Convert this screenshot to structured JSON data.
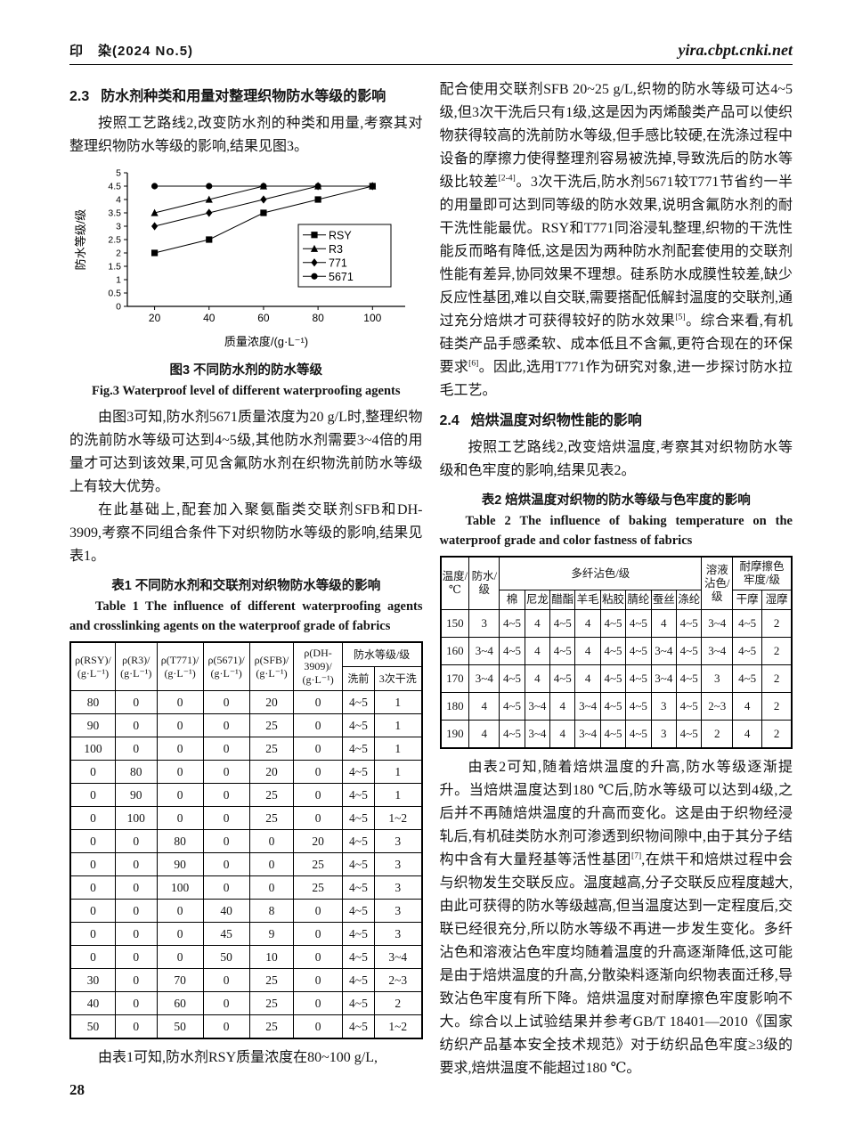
{
  "page": {
    "journal": "印　染(2024 No.5)",
    "site": "yira.cbpt.cnki.net",
    "page_number": "28"
  },
  "left": {
    "sec23": {
      "num": "2.3",
      "title": "防水剂种类和用量对整理织物防水等级的影响",
      "para": "按照工艺路线2,改变防水剂的种类和用量,考察其对整理织物防水等级的影响,结果见图3。"
    },
    "fig3": {
      "caption_zh": "图3  不同防水剂的防水等级",
      "caption_en": "Fig.3  Waterproof level of different waterproofing agents"
    },
    "para2": "由图3可知,防水剂5671质量浓度为20 g/L时,整理织物的洗前防水等级可达到4~5级,其他防水剂需要3~4倍的用量才可达到该效果,可见含氟防水剂在织物洗前防水等级上有较大优势。",
    "para3": "在此基础上,配套加入聚氨酯类交联剂SFB和DH-3909,考察不同组合条件下对织物防水等级的影响,结果见表1。",
    "table1": {
      "caption_zh": "表1  不同防水剂和交联剂对织物防水等级的影响",
      "caption_en": "Table 1  The influence of different waterproofing agents and crosslinking agents on the waterproof grade of fabrics",
      "headers": [
        "ρ(RSY)/\n(g·L⁻¹)",
        "ρ(R3)/\n(g·L⁻¹)",
        "ρ(T771)/\n(g·L⁻¹)",
        "ρ(5671)/\n(g·L⁻¹)",
        "ρ(SFB)/\n(g·L⁻¹)",
        "ρ(DH-\n3909)/\n(g·L⁻¹)"
      ],
      "group_header": "防水等级/级",
      "sub_headers": [
        "洗前",
        "3次干洗"
      ],
      "rows": [
        [
          "80",
          "0",
          "0",
          "0",
          "20",
          "0",
          "4~5",
          "1"
        ],
        [
          "90",
          "0",
          "0",
          "0",
          "25",
          "0",
          "4~5",
          "1"
        ],
        [
          "100",
          "0",
          "0",
          "0",
          "25",
          "0",
          "4~5",
          "1"
        ],
        [
          "0",
          "80",
          "0",
          "0",
          "20",
          "0",
          "4~5",
          "1"
        ],
        [
          "0",
          "90",
          "0",
          "0",
          "25",
          "0",
          "4~5",
          "1"
        ],
        [
          "0",
          "100",
          "0",
          "0",
          "25",
          "0",
          "4~5",
          "1~2"
        ],
        [
          "0",
          "0",
          "80",
          "0",
          "0",
          "20",
          "4~5",
          "3"
        ],
        [
          "0",
          "0",
          "90",
          "0",
          "0",
          "25",
          "4~5",
          "3"
        ],
        [
          "0",
          "0",
          "100",
          "0",
          "0",
          "25",
          "4~5",
          "3"
        ],
        [
          "0",
          "0",
          "0",
          "40",
          "8",
          "0",
          "4~5",
          "3"
        ],
        [
          "0",
          "0",
          "0",
          "45",
          "9",
          "0",
          "4~5",
          "3"
        ],
        [
          "0",
          "0",
          "0",
          "50",
          "10",
          "0",
          "4~5",
          "3~4"
        ],
        [
          "30",
          "0",
          "70",
          "0",
          "25",
          "0",
          "4~5",
          "2~3"
        ],
        [
          "40",
          "0",
          "60",
          "0",
          "25",
          "0",
          "4~5",
          "2"
        ],
        [
          "50",
          "0",
          "50",
          "0",
          "25",
          "0",
          "4~5",
          "1~2"
        ]
      ]
    },
    "para4": "由表1可知,防水剂RSY质量浓度在80~100 g/L,"
  },
  "right": {
    "para1": [
      {
        "t": "配合使用交联剂SFB 20~25 g/L,织物的防水等级可达4~5级,但3次干洗后只有1级,这是因为丙烯酸类产品可以使织物获得较高的洗前防水等级,但手感比较硬,在洗涤过程中设备的摩擦力使得整理剂容易被洗掉,导致洗后的防水等级比较差",
        "sup": false
      },
      {
        "t": "[2-4]",
        "sup": true
      },
      {
        "t": "。3次干洗后,防水剂5671较T771节省约一半的用量即可达到同等级的防水效果,说明含氟防水剂的耐干洗性能最优。RSY和T771同浴浸轧整理,织物的干洗性能反而略有降低,这是因为两种防水剂配套使用的交联剂性能有差异,协同效果不理想。硅系防水成膜性较差,缺少反应性基团,难以自交联,需要搭配低解封温度的交联剂,通过充分焙烘才可获得较好的防水效果",
        "sup": false
      },
      {
        "t": "[5]",
        "sup": true
      },
      {
        "t": "。综合来看,有机硅类产品手感柔软、成本低且不含氟,更符合现在的环保要求",
        "sup": false
      },
      {
        "t": "[6]",
        "sup": true
      },
      {
        "t": "。因此,选用T771作为研究对象,进一步探讨防水拉毛工艺。",
        "sup": false
      }
    ],
    "sec24": {
      "num": "2.4",
      "title": "焙烘温度对织物性能的影响",
      "para": "按照工艺路线2,改变焙烘温度,考察其对织物防水等级和色牢度的影响,结果见表2。"
    },
    "table2": {
      "caption_zh": "表2  焙烘温度对织物的防水等级与色牢度的影响",
      "caption_en": "Table 2  The influence of baking temperature on the waterproof grade and color fastness of fabrics",
      "h_temp": "温度/\n℃",
      "h_waterproof": "防水/\n级",
      "h_multi": "多纤沾色/级",
      "multi_cols": [
        "棉",
        "尼龙",
        "醋酯",
        "羊毛",
        "粘胶",
        "腈纶",
        "蚕丝",
        "涤纶"
      ],
      "h_solution": "溶液\n沾色/\n级",
      "h_rub": "耐摩擦色\n牢度/级",
      "rub_cols": [
        "干摩",
        "湿摩"
      ],
      "rows": [
        [
          "150",
          "3",
          "4~5",
          "4",
          "4~5",
          "4",
          "4~5",
          "4~5",
          "4",
          "4~5",
          "3~4",
          "4~5",
          "2"
        ],
        [
          "160",
          "3~4",
          "4~5",
          "4",
          "4~5",
          "4",
          "4~5",
          "4~5",
          "3~4",
          "4~5",
          "3~4",
          "4~5",
          "2"
        ],
        [
          "170",
          "3~4",
          "4~5",
          "4",
          "4~5",
          "4",
          "4~5",
          "4~5",
          "3~4",
          "4~5",
          "3",
          "4~5",
          "2"
        ],
        [
          "180",
          "4",
          "4~5",
          "3~4",
          "4",
          "3~4",
          "4~5",
          "4~5",
          "3",
          "4~5",
          "2~3",
          "4",
          "2"
        ],
        [
          "190",
          "4",
          "4~5",
          "3~4",
          "4",
          "3~4",
          "4~5",
          "4~5",
          "3",
          "4~5",
          "2",
          "4",
          "2"
        ]
      ]
    },
    "para2": [
      {
        "t": "由表2可知,随着焙烘温度的升高,防水等级逐渐提升。当焙烘温度达到180 ℃后,防水等级可以达到4级,之后并不再随焙烘温度的升高而变化。这是由于织物经浸轧后,有机硅类防水剂可渗透到织物间隙中,由于其分子结构中含有大量羟基等活性基团",
        "sup": false
      },
      {
        "t": "[7]",
        "sup": true
      },
      {
        "t": ",在烘干和焙烘过程中会与织物发生交联反应。温度越高,分子交联反应程度越大,由此可获得的防水等级越高,但当温度达到一定程度后,交联已经很充分,所以防水等级不再进一步发生变化。多纤沾色和溶液沾色牢度均随着温度的升高逐渐降低,这可能是由于焙烘温度的升高,分散染料逐渐向织物表面迁移,导致沾色牢度有所下降。焙烘温度对耐摩擦色牢度影响不大。综合以上试验结果并参考GB/T 18401—2010《国家纺织产品基本安全技术规范》对于纺织品色牢度≥3级的要求,焙烘温度不能超过180 ℃。",
        "sup": false
      }
    ]
  },
  "chart_data": {
    "type": "line",
    "x": [
      20,
      40,
      60,
      80,
      100
    ],
    "series": [
      {
        "name": "RSY",
        "marker": "square",
        "values": [
          2.0,
          2.5,
          3.5,
          4.0,
          4.5
        ]
      },
      {
        "name": "R3",
        "marker": "triangle",
        "values": [
          3.5,
          4.0,
          4.5,
          4.5,
          4.5
        ]
      },
      {
        "name": "771",
        "marker": "diamond",
        "values": [
          3.0,
          3.5,
          4.0,
          4.5,
          4.5
        ]
      },
      {
        "name": "5671",
        "marker": "circle",
        "values": [
          4.5,
          4.5,
          4.5,
          4.5,
          4.5
        ]
      }
    ],
    "xlabel": "质量浓度/(g·L⁻¹)",
    "ylabel": "防水等级/级",
    "xlim": [
      10,
      112
    ],
    "ylim": [
      0,
      5
    ],
    "ytick_step": 0.5,
    "xticks": [
      20,
      40,
      60,
      80,
      100
    ],
    "grid": false,
    "legend_position": "right-middle",
    "line_color": "#000000"
  }
}
